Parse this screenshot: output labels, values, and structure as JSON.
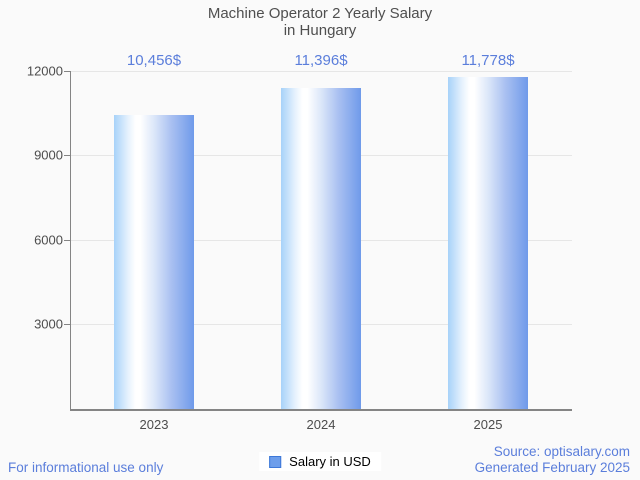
{
  "title": {
    "line1": "Machine Operator 2 Yearly Salary",
    "line2": "in Hungary"
  },
  "chart_data": {
    "type": "bar",
    "title": "Machine Operator 2 Yearly Salary in Hungary",
    "categories": [
      "2023",
      "2024",
      "2025"
    ],
    "values": [
      10456,
      11396,
      11778
    ],
    "value_labels": [
      "10,456$",
      "11,396$",
      "11,778$"
    ],
    "series_name": "Salary in USD",
    "xlabel": "",
    "ylabel": "",
    "ylim": [
      0,
      12000
    ],
    "yticks": [
      0,
      3000,
      6000,
      9000,
      12000
    ],
    "ytick_labels_top_to_bottom": [
      "12000",
      "9000",
      "6000",
      "3000"
    ],
    "grid": true,
    "legend_position": "bottom-center",
    "bar_orientation": "vertical"
  },
  "legend": {
    "label": "Salary in USD",
    "swatch_color": "#6d9eeb"
  },
  "footer": {
    "left_note": "For informational use only",
    "source": "Source: optisalary.com",
    "generated": "Generated February 2025"
  },
  "colors": {
    "background": "#fafafa",
    "bar_gradient_left": "#a7d2f9",
    "bar_gradient_mid": "#ffffff",
    "bar_gradient_right": "#6f9aea",
    "value_label_blue": "#5b7edb",
    "footer_blue": "#5b7edb",
    "axis_text": "#4d4d4d",
    "title_text": "#4f4f4f",
    "gridline": "#e6e6e6",
    "axis_line": "#848484"
  }
}
